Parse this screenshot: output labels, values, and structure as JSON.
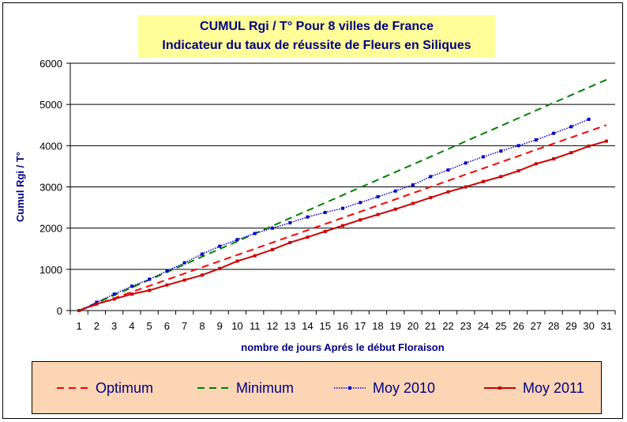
{
  "chart_data": {
    "type": "line",
    "title": "CUMUL Rgi / T° Pour 8 villes de France",
    "subtitle": "Indicateur du taux de réussite de Fleurs en Siliques",
    "xlabel": "nombre de jours Aprés le début Floraison",
    "ylabel": "Cumul Rgi / T°",
    "categories": [
      "1",
      "2",
      "3",
      "4",
      "5",
      "6",
      "7",
      "8",
      "9",
      "10",
      "11",
      "12",
      "13",
      "14",
      "15",
      "16",
      "17",
      "18",
      "19",
      "20",
      "21",
      "22",
      "23",
      "24",
      "25",
      "26",
      "27",
      "28",
      "29",
      "30",
      "31"
    ],
    "ylim": [
      0,
      6000
    ],
    "yticks": [
      0,
      1000,
      2000,
      3000,
      4000,
      5000,
      6000
    ],
    "grid": "horizontal",
    "legend_position": "bottom",
    "series": [
      {
        "name": "Optimum",
        "color": "#ff0000",
        "style": "dashed",
        "marker": "none",
        "values": [
          0,
          150,
          300,
          450,
          600,
          750,
          900,
          1050,
          1200,
          1350,
          1500,
          1650,
          1800,
          1950,
          2100,
          2250,
          2400,
          2550,
          2700,
          2850,
          3000,
          3150,
          3300,
          3450,
          3600,
          3750,
          3900,
          4050,
          4200,
          4350,
          4500
        ]
      },
      {
        "name": "Minimum",
        "color": "#008000",
        "style": "dashed",
        "marker": "none",
        "values": [
          0,
          187,
          373,
          560,
          747,
          933,
          1120,
          1307,
          1493,
          1680,
          1867,
          2053,
          2240,
          2427,
          2613,
          2800,
          2987,
          3173,
          3360,
          3547,
          3733,
          3920,
          4107,
          4293,
          4480,
          4667,
          4853,
          5040,
          5227,
          5413,
          5600
        ]
      },
      {
        "name": "Moy 2010",
        "color": "#0000cc",
        "style": "dotted",
        "marker": "square",
        "values": [
          0,
          200,
          400,
          590,
          760,
          960,
          1160,
          1370,
          1560,
          1720,
          1870,
          2000,
          2130,
          2270,
          2380,
          2480,
          2620,
          2760,
          2900,
          3050,
          3250,
          3410,
          3580,
          3730,
          3870,
          4000,
          4140,
          4300,
          4460,
          4640,
          null
        ]
      },
      {
        "name": "Moy 2011",
        "color": "#cc0000",
        "style": "solid",
        "marker": "square",
        "values": [
          0,
          160,
          280,
          400,
          490,
          620,
          740,
          860,
          1020,
          1200,
          1330,
          1480,
          1650,
          1780,
          1920,
          2060,
          2200,
          2330,
          2460,
          2600,
          2740,
          2880,
          3000,
          3130,
          3250,
          3390,
          3560,
          3680,
          3830,
          3990,
          4110
        ]
      }
    ]
  }
}
